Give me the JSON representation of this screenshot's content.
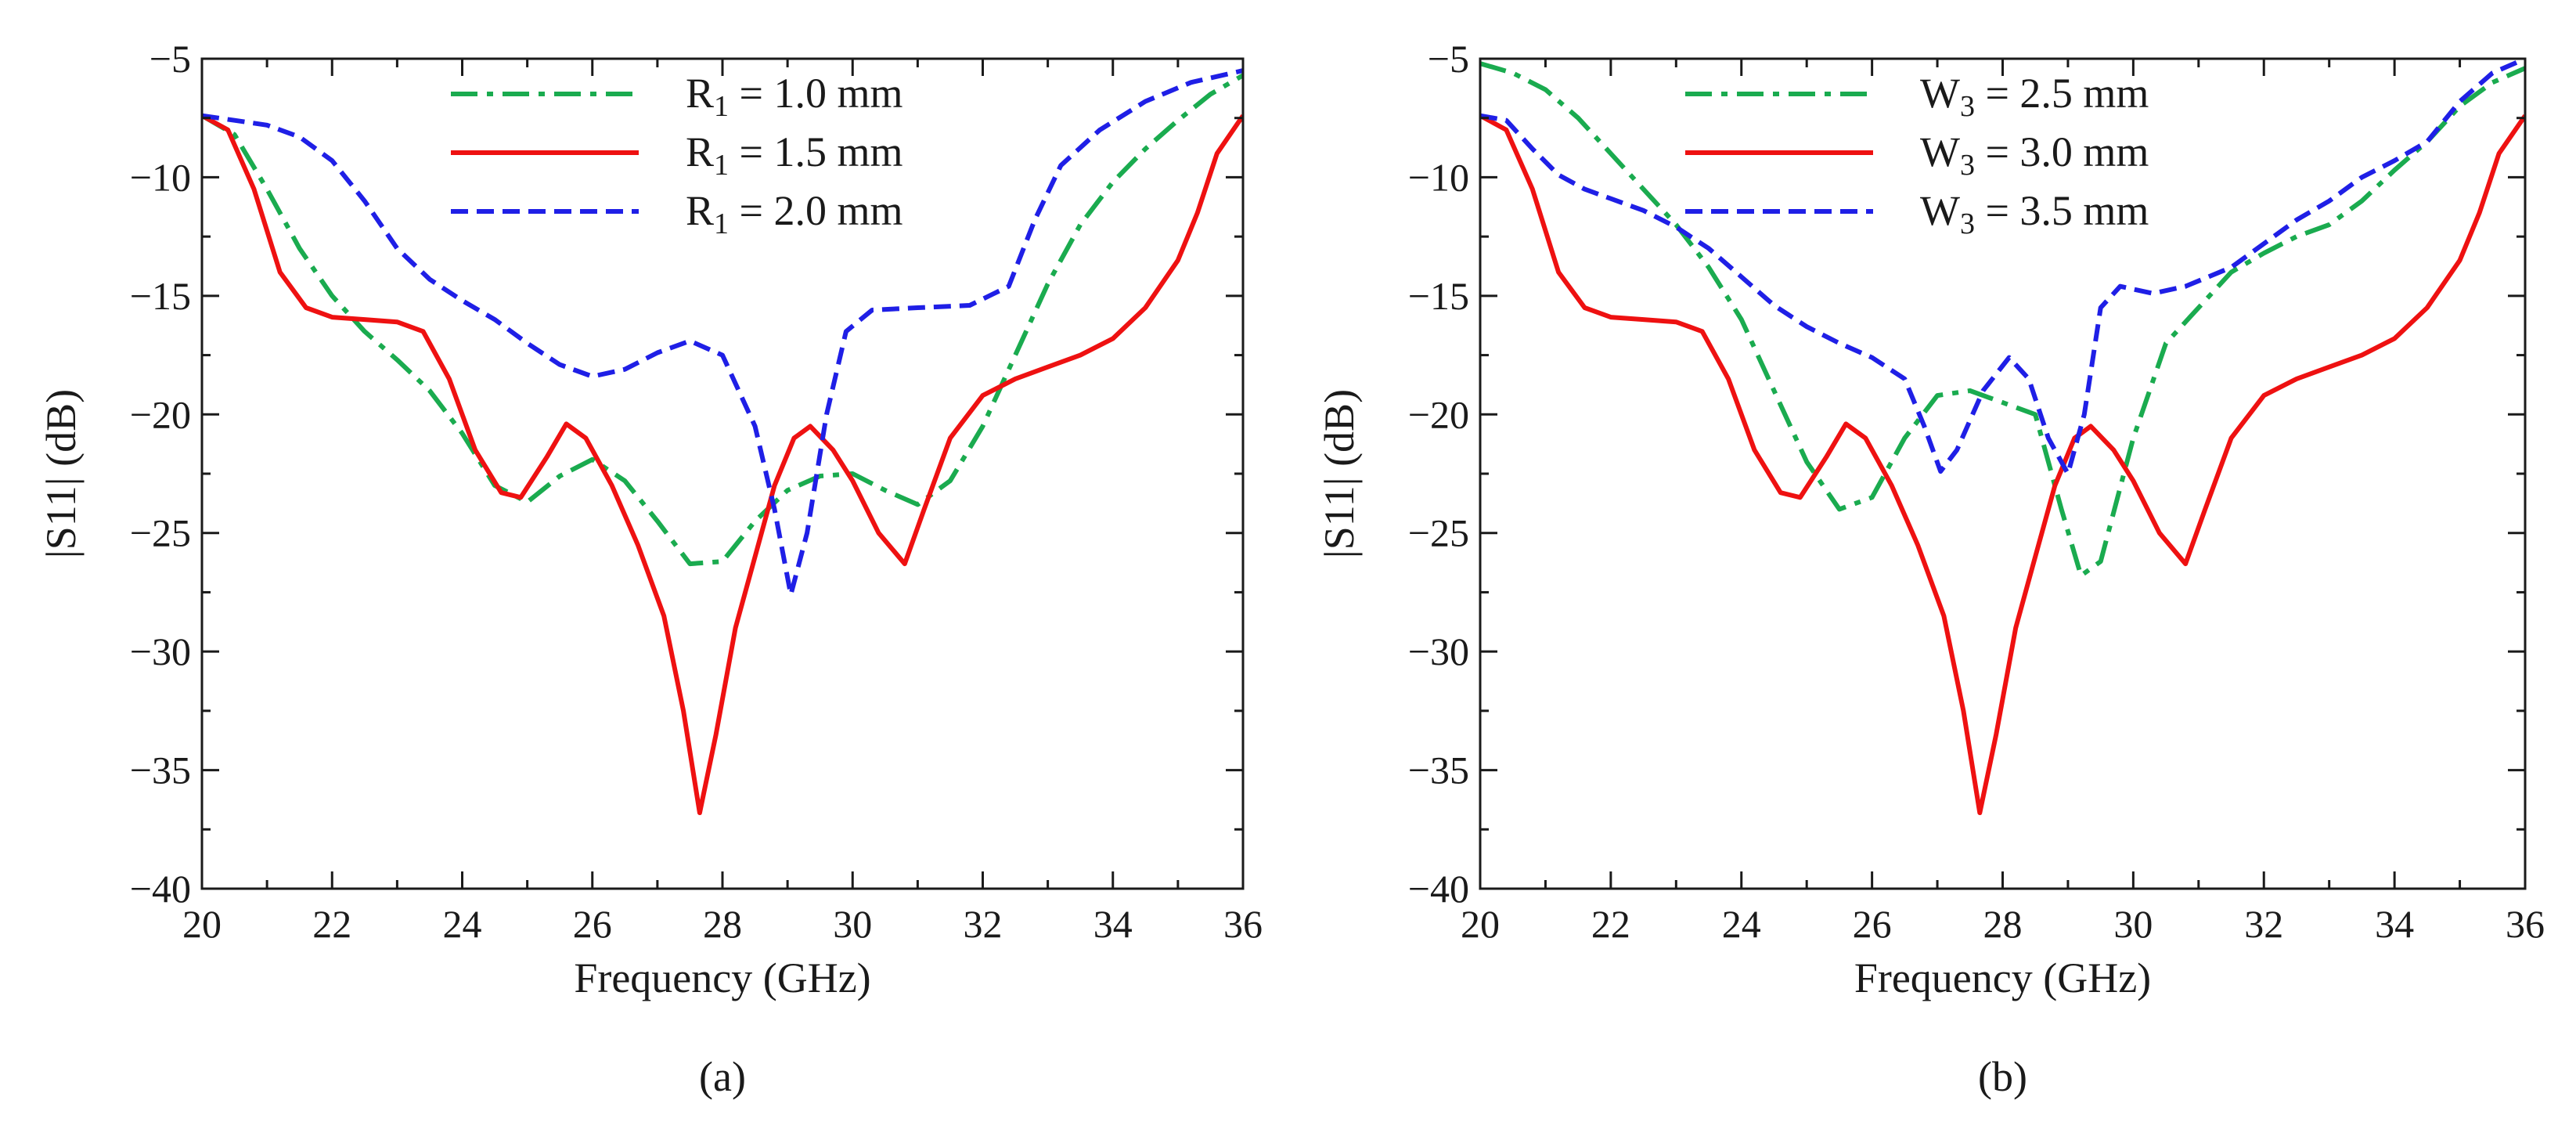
{
  "colors": {
    "green": "#1aab4f",
    "red": "#ee1111",
    "blue": "#1f1fe6"
  },
  "chart_data": [
    {
      "type": "line",
      "panel_label": "(a)",
      "xlabel": "Frequency (GHz)",
      "ylabel": "|S11| (dB)",
      "xlim": [
        20,
        36
      ],
      "ylim": [
        -40,
        -5
      ],
      "xticks": [
        20,
        22,
        24,
        26,
        28,
        30,
        32,
        34,
        36
      ],
      "yticks": [
        -5,
        -10,
        -15,
        -20,
        -25,
        -30,
        -35,
        -40
      ],
      "ytick_labels": [
        "−5",
        "−10",
        "−15",
        "−20",
        "−25",
        "−30",
        "−35",
        "−40"
      ],
      "legend_position": "top-center",
      "series": [
        {
          "name": "R1 = 1.0 mm",
          "label_prefix": "R",
          "label_sub": "1",
          "label_suffix": " = 1.0 mm",
          "color": "green",
          "style": "dashdot",
          "points": [
            [
              20,
              -7.4
            ],
            [
              20.5,
              -8.2
            ],
            [
              21,
              -10.5
            ],
            [
              21.5,
              -13
            ],
            [
              22,
              -15
            ],
            [
              22.5,
              -16.5
            ],
            [
              23,
              -17.7
            ],
            [
              23.5,
              -19
            ],
            [
              24,
              -20.8
            ],
            [
              24.5,
              -23
            ],
            [
              25,
              -23.7
            ],
            [
              25.5,
              -22.6
            ],
            [
              26,
              -21.9
            ],
            [
              26.5,
              -22.8
            ],
            [
              27,
              -24.5
            ],
            [
              27.5,
              -26.3
            ],
            [
              28,
              -26.2
            ],
            [
              28.5,
              -24.5
            ],
            [
              29,
              -23.2
            ],
            [
              29.5,
              -22.6
            ],
            [
              30,
              -22.5
            ],
            [
              30.5,
              -23.2
            ],
            [
              31,
              -23.8
            ],
            [
              31.5,
              -22.8
            ],
            [
              32,
              -20.5
            ],
            [
              32.5,
              -17.5
            ],
            [
              33,
              -14.5
            ],
            [
              33.5,
              -12
            ],
            [
              34,
              -10.2
            ],
            [
              34.5,
              -8.8
            ],
            [
              35,
              -7.6
            ],
            [
              35.5,
              -6.5
            ],
            [
              36,
              -5.7
            ]
          ]
        },
        {
          "name": "R1 = 1.5 mm",
          "label_prefix": "R",
          "label_sub": "1",
          "label_suffix": " = 1.5 mm",
          "color": "red",
          "style": "solid",
          "points": [
            [
              20,
              -7.4
            ],
            [
              20.4,
              -8
            ],
            [
              20.8,
              -10.5
            ],
            [
              21.2,
              -14
            ],
            [
              21.6,
              -15.5
            ],
            [
              22,
              -15.9
            ],
            [
              22.5,
              -16
            ],
            [
              23,
              -16.1
            ],
            [
              23.4,
              -16.5
            ],
            [
              23.8,
              -18.5
            ],
            [
              24.2,
              -21.5
            ],
            [
              24.6,
              -23.3
            ],
            [
              24.9,
              -23.5
            ],
            [
              25.3,
              -21.8
            ],
            [
              25.6,
              -20.4
            ],
            [
              25.9,
              -21
            ],
            [
              26.3,
              -23
            ],
            [
              26.7,
              -25.5
            ],
            [
              27.1,
              -28.5
            ],
            [
              27.4,
              -32.5
            ],
            [
              27.65,
              -36.8
            ],
            [
              27.9,
              -33.5
            ],
            [
              28.2,
              -29
            ],
            [
              28.5,
              -26
            ],
            [
              28.8,
              -23
            ],
            [
              29.1,
              -21
            ],
            [
              29.35,
              -20.5
            ],
            [
              29.7,
              -21.5
            ],
            [
              30,
              -22.8
            ],
            [
              30.4,
              -25
            ],
            [
              30.8,
              -26.3
            ],
            [
              31.1,
              -24
            ],
            [
              31.5,
              -21
            ],
            [
              32,
              -19.2
            ],
            [
              32.5,
              -18.5
            ],
            [
              33,
              -18
            ],
            [
              33.5,
              -17.5
            ],
            [
              34,
              -16.8
            ],
            [
              34.5,
              -15.5
            ],
            [
              35,
              -13.5
            ],
            [
              35.3,
              -11.5
            ],
            [
              35.6,
              -9
            ],
            [
              36,
              -7.4
            ]
          ]
        },
        {
          "name": "R1 = 2.0 mm",
          "label_prefix": "R",
          "label_sub": "1",
          "label_suffix": " = 2.0 mm",
          "color": "blue",
          "style": "dashed",
          "points": [
            [
              20,
              -7.4
            ],
            [
              20.5,
              -7.6
            ],
            [
              21,
              -7.8
            ],
            [
              21.5,
              -8.3
            ],
            [
              22,
              -9.3
            ],
            [
              22.5,
              -11
            ],
            [
              23,
              -13
            ],
            [
              23.5,
              -14.3
            ],
            [
              24,
              -15.2
            ],
            [
              24.5,
              -16
            ],
            [
              25,
              -17
            ],
            [
              25.5,
              -17.9
            ],
            [
              26,
              -18.4
            ],
            [
              26.5,
              -18.1
            ],
            [
              27,
              -17.4
            ],
            [
              27.5,
              -16.9
            ],
            [
              28,
              -17.5
            ],
            [
              28.5,
              -20.5
            ],
            [
              28.8,
              -24
            ],
            [
              29.05,
              -27.6
            ],
            [
              29.3,
              -25
            ],
            [
              29.6,
              -20
            ],
            [
              29.9,
              -16.5
            ],
            [
              30.3,
              -15.6
            ],
            [
              31,
              -15.5
            ],
            [
              31.8,
              -15.4
            ],
            [
              32.4,
              -14.6
            ],
            [
              32.8,
              -11.8
            ],
            [
              33.2,
              -9.5
            ],
            [
              33.8,
              -8
            ],
            [
              34.5,
              -6.8
            ],
            [
              35.2,
              -6
            ],
            [
              36,
              -5.5
            ]
          ]
        }
      ]
    },
    {
      "type": "line",
      "panel_label": "(b)",
      "xlabel": "Frequency (GHz)",
      "ylabel": "|S11| (dB)",
      "xlim": [
        20,
        36
      ],
      "ylim": [
        -40,
        -5
      ],
      "xticks": [
        20,
        22,
        24,
        26,
        28,
        30,
        32,
        34,
        36
      ],
      "yticks": [
        -5,
        -10,
        -15,
        -20,
        -25,
        -30,
        -35,
        -40
      ],
      "ytick_labels": [
        "−5",
        "−10",
        "−15",
        "−20",
        "−25",
        "−30",
        "−35",
        "−40"
      ],
      "legend_position": "top-center",
      "series": [
        {
          "name": "W3 = 2.5 mm",
          "label_prefix": "W",
          "label_sub": "3",
          "label_suffix": " = 2.5 mm",
          "color": "green",
          "style": "dashdot",
          "points": [
            [
              20,
              -5.2
            ],
            [
              20.5,
              -5.6
            ],
            [
              21,
              -6.3
            ],
            [
              21.5,
              -7.5
            ],
            [
              22,
              -9
            ],
            [
              22.5,
              -10.5
            ],
            [
              23,
              -12
            ],
            [
              23.5,
              -13.8
            ],
            [
              24,
              -16
            ],
            [
              24.5,
              -19
            ],
            [
              25,
              -22
            ],
            [
              25.5,
              -24
            ],
            [
              26,
              -23.5
            ],
            [
              26.5,
              -21
            ],
            [
              27,
              -19.2
            ],
            [
              27.5,
              -19
            ],
            [
              28,
              -19.5
            ],
            [
              28.5,
              -20
            ],
            [
              28.9,
              -24
            ],
            [
              29.2,
              -26.8
            ],
            [
              29.5,
              -26.2
            ],
            [
              30,
              -21
            ],
            [
              30.5,
              -17
            ],
            [
              31,
              -15.5
            ],
            [
              31.5,
              -14
            ],
            [
              32,
              -13.2
            ],
            [
              32.5,
              -12.5
            ],
            [
              33,
              -12
            ],
            [
              33.5,
              -11
            ],
            [
              34,
              -9.7
            ],
            [
              34.5,
              -8.5
            ],
            [
              35,
              -7
            ],
            [
              35.5,
              -6
            ],
            [
              36,
              -5.4
            ]
          ]
        },
        {
          "name": "W3 = 3.0 mm",
          "label_prefix": "W",
          "label_sub": "3",
          "label_suffix": " = 3.0 mm",
          "color": "red",
          "style": "solid",
          "points": [
            [
              20,
              -7.4
            ],
            [
              20.4,
              -8
            ],
            [
              20.8,
              -10.5
            ],
            [
              21.2,
              -14
            ],
            [
              21.6,
              -15.5
            ],
            [
              22,
              -15.9
            ],
            [
              22.5,
              -16
            ],
            [
              23,
              -16.1
            ],
            [
              23.4,
              -16.5
            ],
            [
              23.8,
              -18.5
            ],
            [
              24.2,
              -21.5
            ],
            [
              24.6,
              -23.3
            ],
            [
              24.9,
              -23.5
            ],
            [
              25.3,
              -21.8
            ],
            [
              25.6,
              -20.4
            ],
            [
              25.9,
              -21
            ],
            [
              26.3,
              -23
            ],
            [
              26.7,
              -25.5
            ],
            [
              27.1,
              -28.5
            ],
            [
              27.4,
              -32.5
            ],
            [
              27.65,
              -36.8
            ],
            [
              27.9,
              -33.5
            ],
            [
              28.2,
              -29
            ],
            [
              28.5,
              -26
            ],
            [
              28.8,
              -23
            ],
            [
              29.1,
              -21
            ],
            [
              29.35,
              -20.5
            ],
            [
              29.7,
              -21.5
            ],
            [
              30,
              -22.8
            ],
            [
              30.4,
              -25
            ],
            [
              30.8,
              -26.3
            ],
            [
              31.1,
              -24
            ],
            [
              31.5,
              -21
            ],
            [
              32,
              -19.2
            ],
            [
              32.5,
              -18.5
            ],
            [
              33,
              -18
            ],
            [
              33.5,
              -17.5
            ],
            [
              34,
              -16.8
            ],
            [
              34.5,
              -15.5
            ],
            [
              35,
              -13.5
            ],
            [
              35.3,
              -11.5
            ],
            [
              35.6,
              -9
            ],
            [
              36,
              -7.4
            ]
          ]
        },
        {
          "name": "W3 = 3.5 mm",
          "label_prefix": "W",
          "label_sub": "3",
          "label_suffix": " = 3.5 mm",
          "color": "blue",
          "style": "dashed",
          "points": [
            [
              20,
              -7.4
            ],
            [
              20.4,
              -7.6
            ],
            [
              20.8,
              -8.8
            ],
            [
              21.2,
              -9.9
            ],
            [
              21.6,
              -10.5
            ],
            [
              22,
              -10.9
            ],
            [
              22.5,
              -11.4
            ],
            [
              23,
              -12.1
            ],
            [
              23.5,
              -13
            ],
            [
              24,
              -14.2
            ],
            [
              24.5,
              -15.4
            ],
            [
              25,
              -16.3
            ],
            [
              25.5,
              -17
            ],
            [
              26,
              -17.6
            ],
            [
              26.5,
              -18.5
            ],
            [
              26.8,
              -20.5
            ],
            [
              27.05,
              -22.4
            ],
            [
              27.3,
              -21.5
            ],
            [
              27.7,
              -19
            ],
            [
              28.1,
              -17.6
            ],
            [
              28.4,
              -18.5
            ],
            [
              28.7,
              -21
            ],
            [
              29,
              -22.5
            ],
            [
              29.25,
              -20
            ],
            [
              29.5,
              -15.5
            ],
            [
              29.8,
              -14.6
            ],
            [
              30.3,
              -14.9
            ],
            [
              30.8,
              -14.6
            ],
            [
              31.5,
              -13.8
            ],
            [
              32,
              -12.8
            ],
            [
              32.5,
              -11.8
            ],
            [
              33,
              -11
            ],
            [
              33.5,
              -10
            ],
            [
              34,
              -9.3
            ],
            [
              34.5,
              -8.5
            ],
            [
              35,
              -6.8
            ],
            [
              35.5,
              -5.6
            ],
            [
              36,
              -5
            ]
          ]
        }
      ]
    }
  ]
}
